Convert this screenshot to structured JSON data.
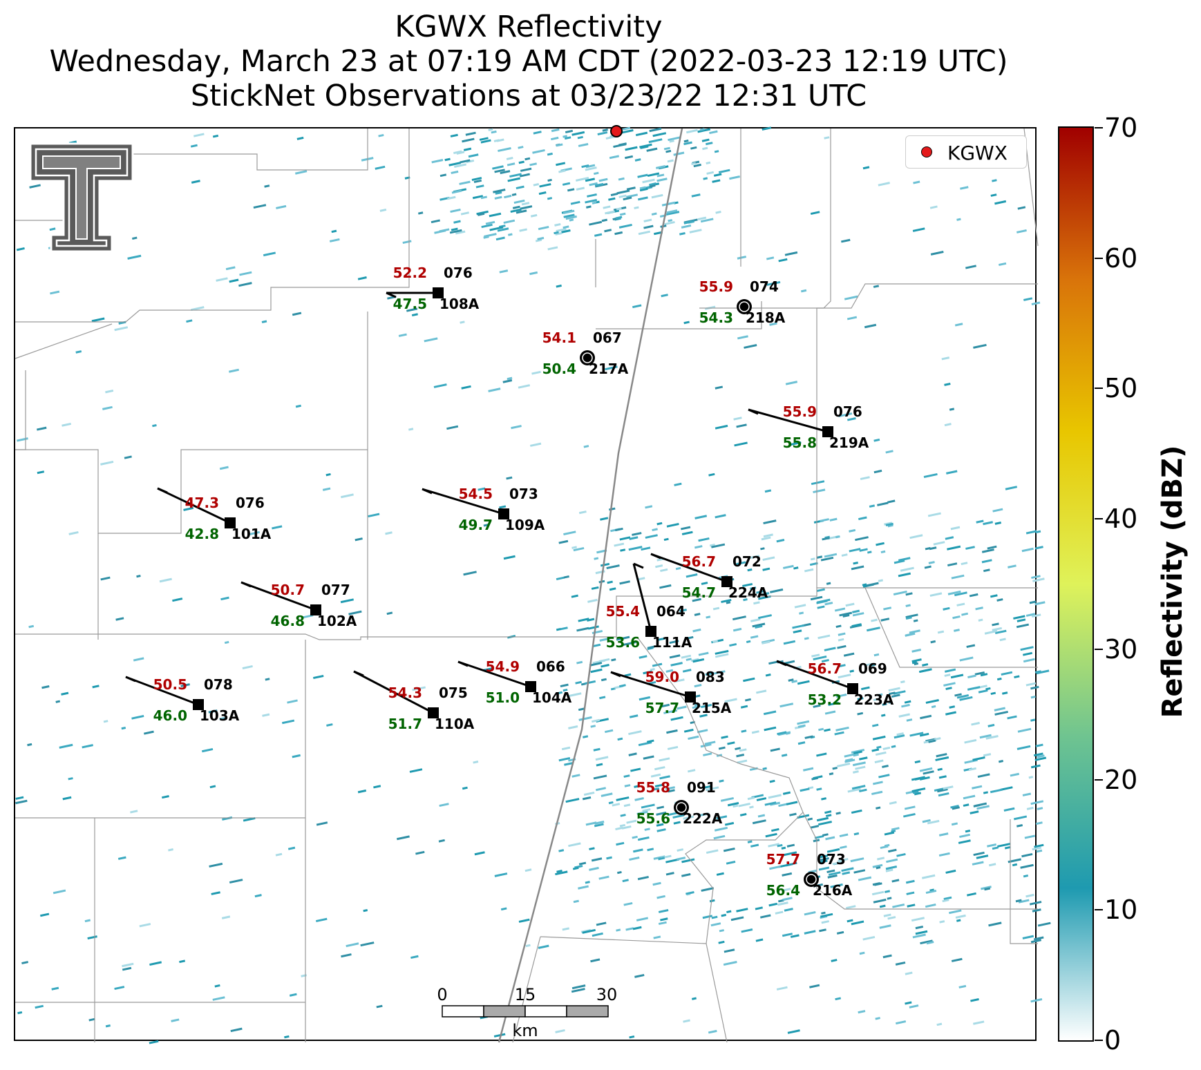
{
  "title": {
    "line1": "KGWX Reflectivity",
    "line2": "Wednesday, March 23 at 07:19 AM CDT (2022-03-23 12:19 UTC)",
    "line3": "StickNet Observations at 03/23/22 12:31 UTC"
  },
  "legend": {
    "label": "KGWX",
    "marker_color": "#e41a1c"
  },
  "colorbar": {
    "title": "Reflectivity (dBZ)",
    "ticks": [
      "0",
      "10",
      "20",
      "30",
      "40",
      "50",
      "60",
      "70"
    ],
    "colors": [
      "#ffffff",
      "#1e9ab0",
      "#6fc490",
      "#dff25a",
      "#e8c600",
      "#d9740a",
      "#a00000"
    ]
  },
  "scale_bar": {
    "labels": [
      "0",
      "15",
      "30"
    ],
    "unit": "km"
  },
  "stations": [
    {
      "id": "108A",
      "temp": "52.2",
      "dew": "47.5",
      "pressure": "076"
    },
    {
      "id": "218A",
      "temp": "55.9",
      "dew": "54.3",
      "pressure": "074"
    },
    {
      "id": "217A",
      "temp": "54.1",
      "dew": "50.4",
      "pressure": "067"
    },
    {
      "id": "219A",
      "temp": "55.9",
      "dew": "55.8",
      "pressure": "076"
    },
    {
      "id": "101A",
      "temp": "47.3",
      "dew": "42.8",
      "pressure": "076"
    },
    {
      "id": "109A",
      "temp": "54.5",
      "dew": "49.7",
      "pressure": "073"
    },
    {
      "id": "224A",
      "temp": "56.7",
      "dew": "54.7",
      "pressure": "072"
    },
    {
      "id": "102A",
      "temp": "50.7",
      "dew": "46.8",
      "pressure": "077"
    },
    {
      "id": "111A",
      "temp": "55.4",
      "dew": "53.6",
      "pressure": "064"
    },
    {
      "id": "104A",
      "temp": "54.9",
      "dew": "51.0",
      "pressure": "066"
    },
    {
      "id": "215A",
      "temp": "59.0",
      "dew": "57.7",
      "pressure": "083"
    },
    {
      "id": "223A",
      "temp": "56.7",
      "dew": "53.2",
      "pressure": "069"
    },
    {
      "id": "103A",
      "temp": "50.5",
      "dew": "46.0",
      "pressure": "078"
    },
    {
      "id": "110A",
      "temp": "54.3",
      "dew": "51.7",
      "pressure": "075"
    },
    {
      "id": "222A",
      "temp": "55.8",
      "dew": "55.6",
      "pressure": "091"
    },
    {
      "id": "216A",
      "temp": "57.7",
      "dew": "56.4",
      "pressure": "073"
    }
  ],
  "colors": {
    "temp": "#b00000",
    "dew": "#006400",
    "station": "#000000"
  }
}
